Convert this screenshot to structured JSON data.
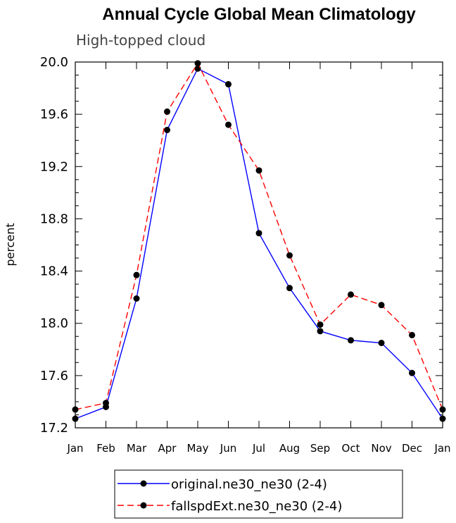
{
  "chart_data": {
    "type": "line",
    "title": "Annual Cycle Global Mean Climatology",
    "subtitle": "High-topped cloud",
    "ylabel": "percent",
    "xlabel": "",
    "categories": [
      "Jan",
      "Feb",
      "Mar",
      "Apr",
      "May",
      "Jun",
      "Jul",
      "Aug",
      "Sep",
      "Oct",
      "Nov",
      "Dec",
      "Jan"
    ],
    "ylim": [
      17.2,
      20.0
    ],
    "yticks": [
      "17.2",
      "17.6",
      "18.0",
      "18.4",
      "18.8",
      "19.2",
      "19.6",
      "20.0"
    ],
    "legend_position": "bottom-center",
    "series": [
      {
        "name": "original.ne30_ne30 (2-4)",
        "color": "#0000ff",
        "dash": "solid",
        "marker": "filled-circle",
        "values": [
          17.27,
          17.36,
          18.19,
          19.48,
          19.95,
          19.83,
          18.69,
          18.27,
          17.94,
          17.87,
          17.85,
          17.62,
          17.27
        ]
      },
      {
        "name": "fallspdExt.ne30_ne30 (2-4)",
        "color": "#ff0000",
        "dash": "dashed",
        "marker": "filled-circle",
        "values": [
          17.34,
          17.39,
          18.37,
          19.62,
          19.99,
          19.52,
          19.17,
          18.52,
          17.99,
          18.22,
          18.14,
          17.91,
          17.34
        ]
      }
    ]
  }
}
